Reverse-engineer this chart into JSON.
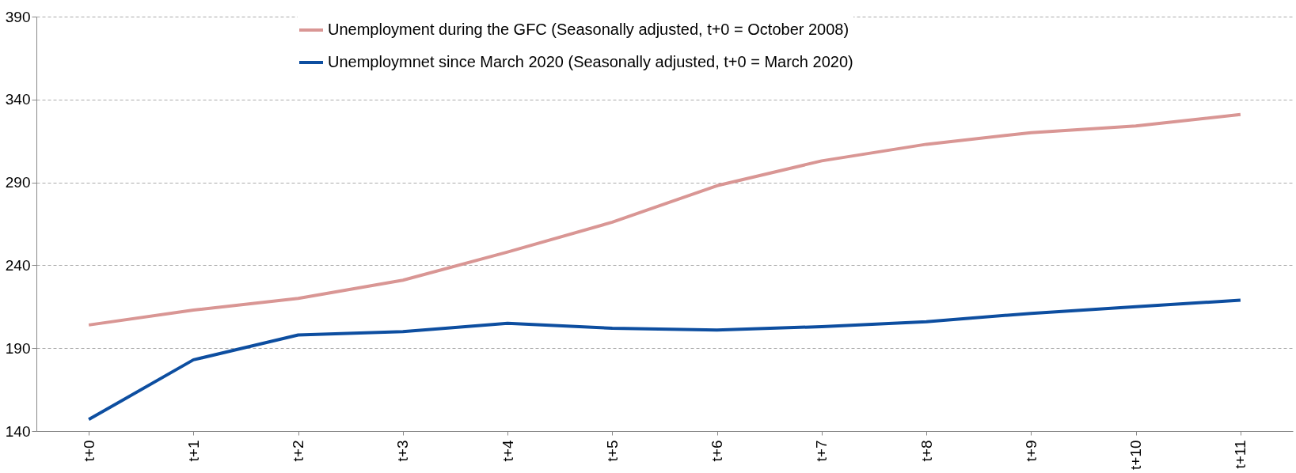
{
  "chart_data": {
    "type": "line",
    "categories": [
      "t+0",
      "t+1",
      "t+2",
      "t+3",
      "t+4",
      "t+5",
      "t+6",
      "t+7",
      "t+8",
      "t+9",
      "t+10",
      "t+11"
    ],
    "series": [
      {
        "name": "Unemployment during the GFC (Seasonally adjusted, t+0 = October 2008)",
        "color": "#d99694",
        "values": [
          204,
          213,
          220,
          231,
          248,
          266,
          288,
          303,
          313,
          320,
          324,
          331
        ]
      },
      {
        "name": "Unemploymnet since March 2020 (Seasonally adjusted, t+0 = March 2020)",
        "color": "#0d4ea0",
        "values": [
          147,
          183,
          198,
          200,
          205,
          202,
          201,
          203,
          206,
          211,
          215,
          219
        ]
      }
    ],
    "ylim": [
      140,
      390
    ],
    "yticks": [
      140,
      190,
      240,
      290,
      340,
      390
    ],
    "grid": "y",
    "legend": "top",
    "line_style": "solid",
    "marker": "none"
  }
}
